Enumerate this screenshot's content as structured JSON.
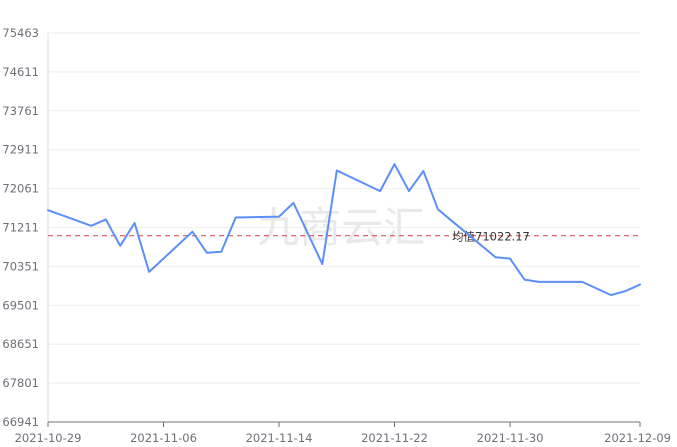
{
  "watermark": "九商云汇",
  "chart_data": {
    "type": "line",
    "title": "",
    "xlabel": "",
    "ylabel": "",
    "ylim": [
      66941,
      75463
    ],
    "yticks": [
      "75463",
      "74611",
      "73761",
      "72911",
      "72061",
      "71211",
      "70351",
      "69501",
      "68651",
      "67801",
      "66941"
    ],
    "xticks": [
      {
        "date": "2021-10-29",
        "label": "2021-10-29"
      },
      {
        "date": "2021-11-06",
        "label": "2021-11-06"
      },
      {
        "date": "2021-11-14",
        "label": "2021-11-14"
      },
      {
        "date": "2021-11-22",
        "label": "2021-11-22"
      },
      {
        "date": "2021-11-30",
        "label": "2021-11-30"
      },
      {
        "date": "2021-12-09",
        "label": "2021-12-09"
      }
    ],
    "xlim": [
      "2021-10-29",
      "2021-12-09"
    ],
    "average": {
      "value": 71022.17,
      "label": "均值71022.17",
      "color": "#e15757"
    },
    "grid": true,
    "series": [
      {
        "color": "#5b8ff9",
        "points": [
          {
            "x": "2021-10-29",
            "y": 71580
          },
          {
            "x": "2021-11-01",
            "y": 71240
          },
          {
            "x": "2021-11-02",
            "y": 71380
          },
          {
            "x": "2021-11-03",
            "y": 70800
          },
          {
            "x": "2021-11-04",
            "y": 71300
          },
          {
            "x": "2021-11-05",
            "y": 70230
          },
          {
            "x": "2021-11-08",
            "y": 71110
          },
          {
            "x": "2021-11-09",
            "y": 70650
          },
          {
            "x": "2021-11-10",
            "y": 70670
          },
          {
            "x": "2021-11-11",
            "y": 71420
          },
          {
            "x": "2021-11-14",
            "y": 71440
          },
          {
            "x": "2021-11-15",
            "y": 71740
          },
          {
            "x": "2021-11-17",
            "y": 70400
          },
          {
            "x": "2021-11-18",
            "y": 72450
          },
          {
            "x": "2021-11-21",
            "y": 72000
          },
          {
            "x": "2021-11-22",
            "y": 72590
          },
          {
            "x": "2021-11-23",
            "y": 72000
          },
          {
            "x": "2021-11-24",
            "y": 72440
          },
          {
            "x": "2021-11-25",
            "y": 71600
          },
          {
            "x": "2021-11-29",
            "y": 70550
          },
          {
            "x": "2021-11-30",
            "y": 70520
          },
          {
            "x": "2021-12-01",
            "y": 70060
          },
          {
            "x": "2021-12-02",
            "y": 70010
          },
          {
            "x": "2021-12-05",
            "y": 70010
          },
          {
            "x": "2021-12-07",
            "y": 69720
          },
          {
            "x": "2021-12-08",
            "y": 69810
          },
          {
            "x": "2021-12-09",
            "y": 69950
          }
        ]
      }
    ]
  }
}
